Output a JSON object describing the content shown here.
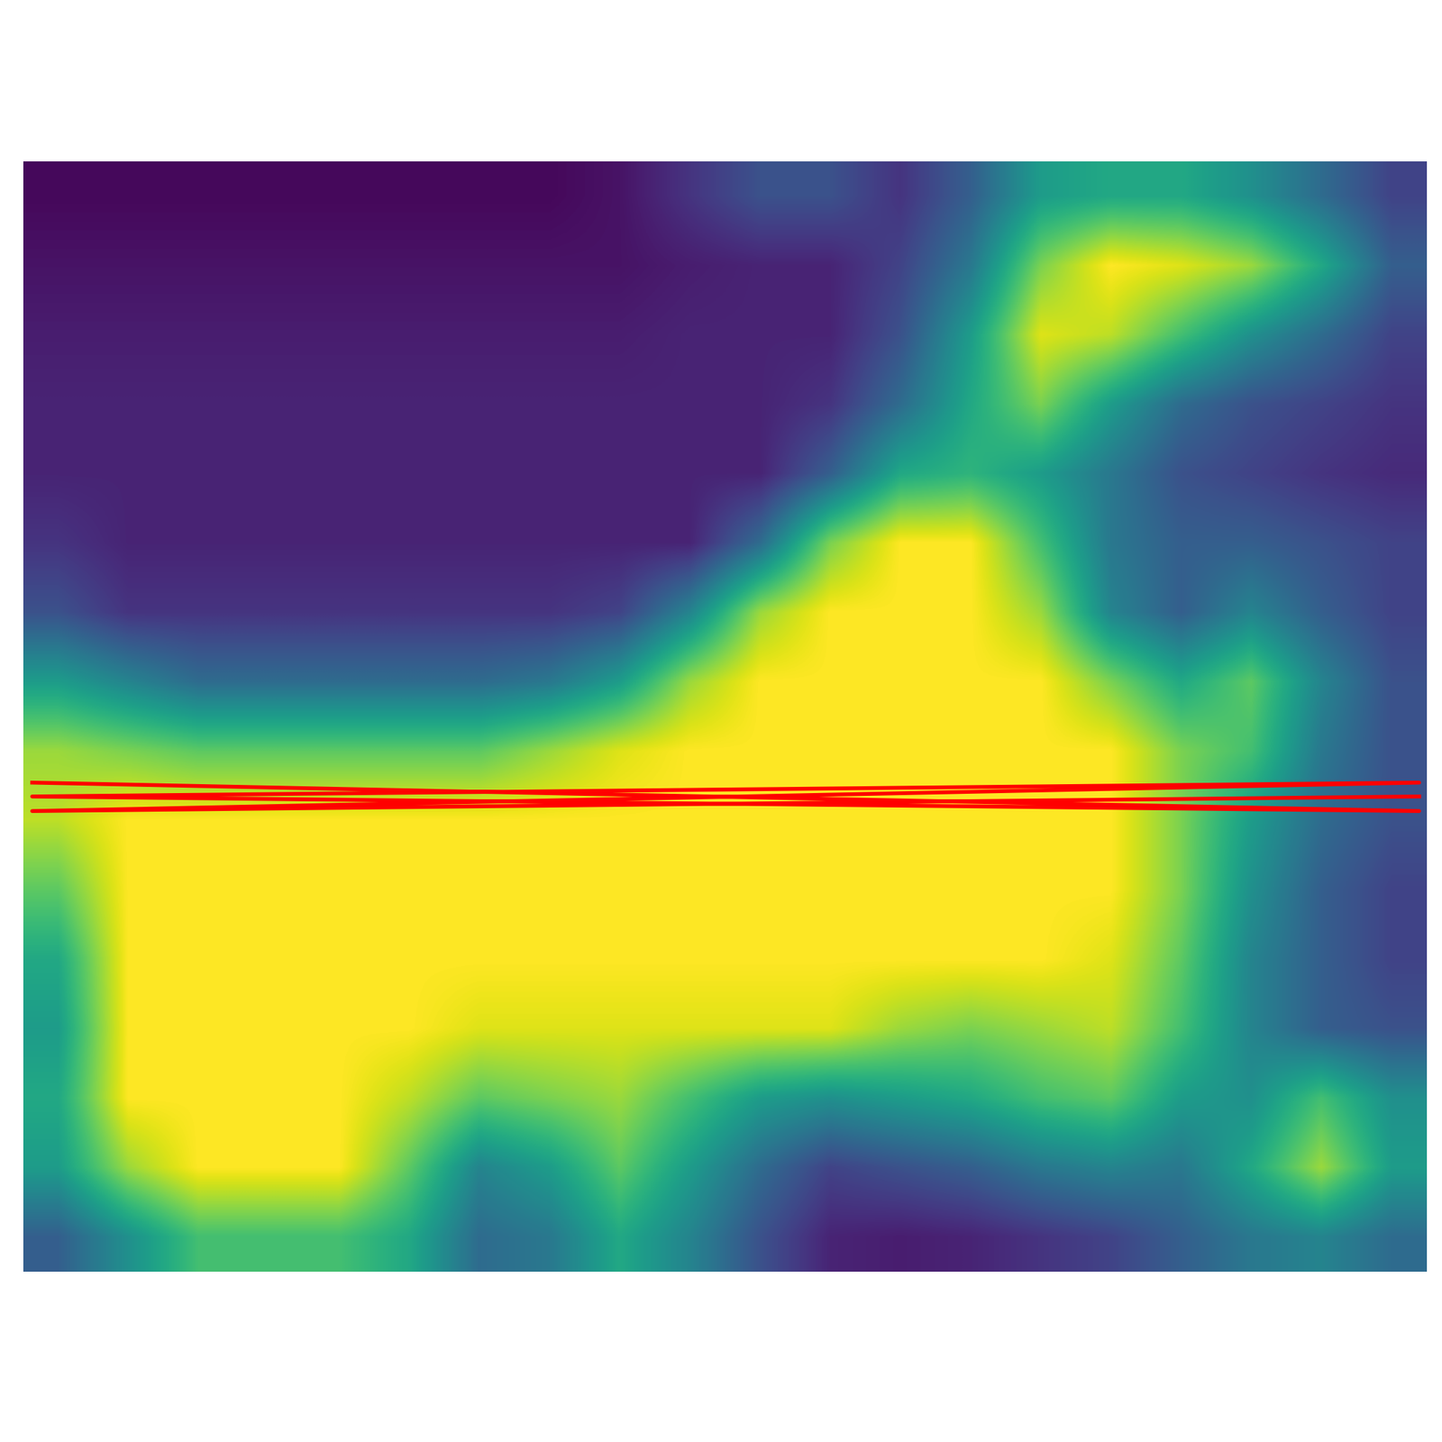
{
  "chart_data": {
    "type": "heatmap",
    "color": "viridis",
    "tick_labels": false,
    "xlim": [
      0,
      20
    ],
    "ylim": [
      16,
      0
    ],
    "color_range": [
      0,
      1
    ],
    "cells": [
      [
        0.02,
        0.02,
        0.02,
        0.02,
        0.02,
        0.02,
        0.02,
        0.02,
        0.05,
        0.15,
        0.25,
        0.25,
        0.15,
        0.3,
        0.55,
        0.6,
        0.6,
        0.5,
        0.35,
        0.2
      ],
      [
        0.05,
        0.05,
        0.05,
        0.05,
        0.05,
        0.05,
        0.05,
        0.05,
        0.05,
        0.08,
        0.1,
        0.1,
        0.2,
        0.4,
        0.8,
        1.0,
        0.95,
        0.85,
        0.6,
        0.3
      ],
      [
        0.08,
        0.08,
        0.08,
        0.08,
        0.08,
        0.08,
        0.08,
        0.08,
        0.08,
        0.1,
        0.1,
        0.1,
        0.25,
        0.55,
        0.95,
        0.9,
        0.7,
        0.5,
        0.35,
        0.2
      ],
      [
        0.1,
        0.1,
        0.1,
        0.1,
        0.1,
        0.1,
        0.1,
        0.1,
        0.1,
        0.1,
        0.1,
        0.15,
        0.35,
        0.6,
        0.8,
        0.55,
        0.35,
        0.25,
        0.2,
        0.15
      ],
      [
        0.1,
        0.1,
        0.1,
        0.1,
        0.1,
        0.1,
        0.1,
        0.1,
        0.1,
        0.1,
        0.1,
        0.3,
        0.6,
        0.65,
        0.55,
        0.4,
        0.25,
        0.2,
        0.15,
        0.12
      ],
      [
        0.15,
        0.1,
        0.1,
        0.1,
        0.1,
        0.1,
        0.1,
        0.1,
        0.1,
        0.1,
        0.35,
        0.8,
        1.0,
        1.0,
        0.7,
        0.4,
        0.3,
        0.3,
        0.25,
        0.2
      ],
      [
        0.25,
        0.15,
        0.15,
        0.15,
        0.15,
        0.15,
        0.15,
        0.15,
        0.2,
        0.45,
        0.85,
        1.0,
        1.0,
        1.0,
        0.85,
        0.45,
        0.3,
        0.45,
        0.3,
        0.2
      ],
      [
        0.55,
        0.45,
        0.35,
        0.35,
        0.35,
        0.35,
        0.35,
        0.4,
        0.55,
        0.85,
        1.0,
        1.0,
        1.0,
        1.0,
        1.0,
        0.8,
        0.6,
        0.75,
        0.45,
        0.25
      ],
      [
        0.85,
        0.8,
        0.75,
        0.75,
        0.75,
        0.75,
        0.75,
        0.85,
        0.95,
        1.0,
        1.0,
        1.0,
        1.0,
        1.0,
        1.0,
        1.0,
        0.8,
        0.7,
        0.4,
        0.25
      ],
      [
        0.9,
        1.0,
        1.0,
        1.0,
        1.0,
        1.0,
        1.0,
        1.0,
        1.0,
        1.0,
        1.0,
        1.0,
        1.0,
        1.0,
        1.0,
        1.0,
        0.8,
        0.55,
        0.35,
        0.25
      ],
      [
        0.75,
        1.0,
        1.0,
        1.0,
        1.0,
        1.0,
        1.0,
        1.0,
        1.0,
        1.0,
        1.0,
        1.0,
        1.0,
        1.0,
        1.0,
        1.0,
        0.8,
        0.5,
        0.3,
        0.2
      ],
      [
        0.6,
        1.0,
        1.0,
        1.0,
        1.0,
        1.0,
        1.0,
        1.0,
        1.0,
        1.0,
        1.0,
        1.0,
        1.0,
        1.0,
        1.0,
        0.95,
        0.75,
        0.45,
        0.3,
        0.2
      ],
      [
        0.55,
        1.0,
        1.0,
        1.0,
        1.0,
        1.0,
        0.95,
        0.95,
        0.95,
        0.95,
        0.95,
        0.95,
        0.85,
        0.8,
        0.85,
        0.9,
        0.7,
        0.45,
        0.3,
        0.25
      ],
      [
        0.6,
        1.0,
        1.0,
        1.0,
        1.0,
        0.9,
        0.75,
        0.8,
        0.85,
        0.7,
        0.55,
        0.5,
        0.55,
        0.6,
        0.7,
        0.75,
        0.55,
        0.5,
        0.7,
        0.5
      ],
      [
        0.55,
        0.85,
        1.0,
        1.0,
        1.0,
        0.75,
        0.45,
        0.55,
        0.75,
        0.55,
        0.35,
        0.2,
        0.25,
        0.3,
        0.4,
        0.45,
        0.4,
        0.6,
        0.85,
        0.55
      ],
      [
        0.3,
        0.5,
        0.7,
        0.7,
        0.7,
        0.6,
        0.35,
        0.4,
        0.6,
        0.45,
        0.25,
        0.1,
        0.08,
        0.1,
        0.15,
        0.2,
        0.3,
        0.4,
        0.45,
        0.35
      ]
    ],
    "series": [
      {
        "type": "line",
        "color": "#ff0000",
        "x": [
          0.13,
          19.9,
          0.13,
          19.9,
          0.13,
          19.9
        ],
        "values": [
          8.95,
          9.36,
          9.15,
          8.95,
          9.36,
          9.15
        ]
      }
    ]
  }
}
